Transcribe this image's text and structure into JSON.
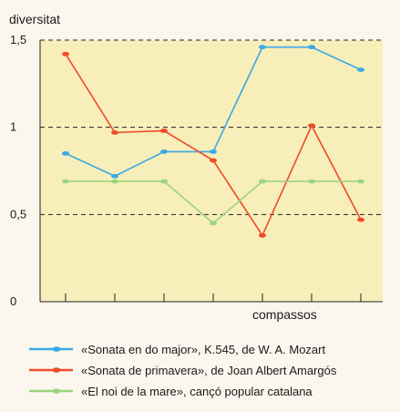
{
  "chart_data": {
    "type": "line",
    "ylabel": "diversitat",
    "xlabel": "compassos",
    "ylim": [
      0,
      1.5
    ],
    "yticks": [
      {
        "value": 0,
        "label": "0"
      },
      {
        "value": 0.5,
        "label": "0,5"
      },
      {
        "value": 1,
        "label": "1"
      },
      {
        "value": 1.5,
        "label": "1,5"
      }
    ],
    "x": [
      1,
      2,
      3,
      4,
      5,
      6,
      7
    ],
    "grid": "dashed horizontal lines at 0.5, 1 and 1.5",
    "legend_position": "bottom",
    "background_color": "#f8eeb9",
    "series": [
      {
        "name": "«Sonata en do major», K.545, de W. A. Mozart",
        "color": "#3aa8e8",
        "values": [
          0.85,
          0.72,
          0.86,
          0.86,
          1.46,
          1.46,
          1.33
        ]
      },
      {
        "name": "«Sonata de primavera», de Joan Albert Amargós",
        "color": "#ee4b2b",
        "values": [
          1.42,
          0.97,
          0.98,
          0.81,
          0.38,
          1.01,
          0.47
        ]
      },
      {
        "name": "«El noi de la mare», cançó popular catalana",
        "color": "#9bd67d",
        "values": [
          0.69,
          0.69,
          0.69,
          0.45,
          0.69,
          0.69,
          0.69
        ]
      }
    ]
  }
}
